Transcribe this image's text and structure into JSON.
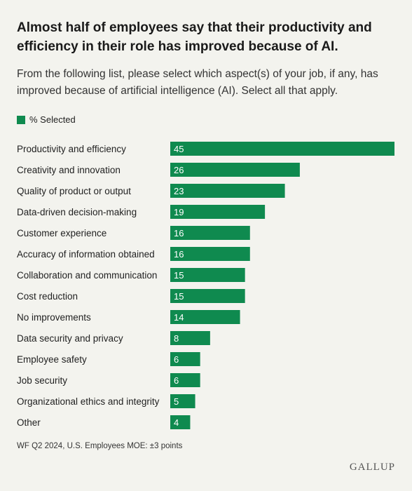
{
  "header": {
    "title": "Almost half of employees say that their productivity and efficiency in their role has improved because of AI.",
    "subtitle": "From the following list, please select which aspect(s) of your job, if any, has improved because of artificial intelligence (AI). Select all that apply."
  },
  "legend": {
    "label": "% Selected"
  },
  "colors": {
    "bar": "#0f8a4f",
    "background": "#f3f3ee"
  },
  "chart_data": {
    "type": "bar",
    "orientation": "horizontal",
    "categories": [
      "Productivity and efficiency",
      "Creativity and innovation",
      "Quality of product or output",
      "Data-driven decision-making",
      "Customer experience",
      "Accuracy of information obtained",
      "Collaboration and communication",
      "Cost reduction",
      "No improvements",
      "Data security and privacy",
      "Employee safety",
      "Job security",
      "Organizational ethics and integrity",
      "Other"
    ],
    "series": [
      {
        "name": "% Selected",
        "values": [
          45,
          26,
          23,
          19,
          16,
          16,
          15,
          15,
          14,
          8,
          6,
          6,
          5,
          4
        ]
      }
    ],
    "xlim": [
      0,
      45
    ],
    "grid": false,
    "legend_position": "top-left"
  },
  "footer": {
    "note": "WF Q2 2024, U.S. Employees MOE: ±3 points",
    "logo": "GALLUP"
  }
}
